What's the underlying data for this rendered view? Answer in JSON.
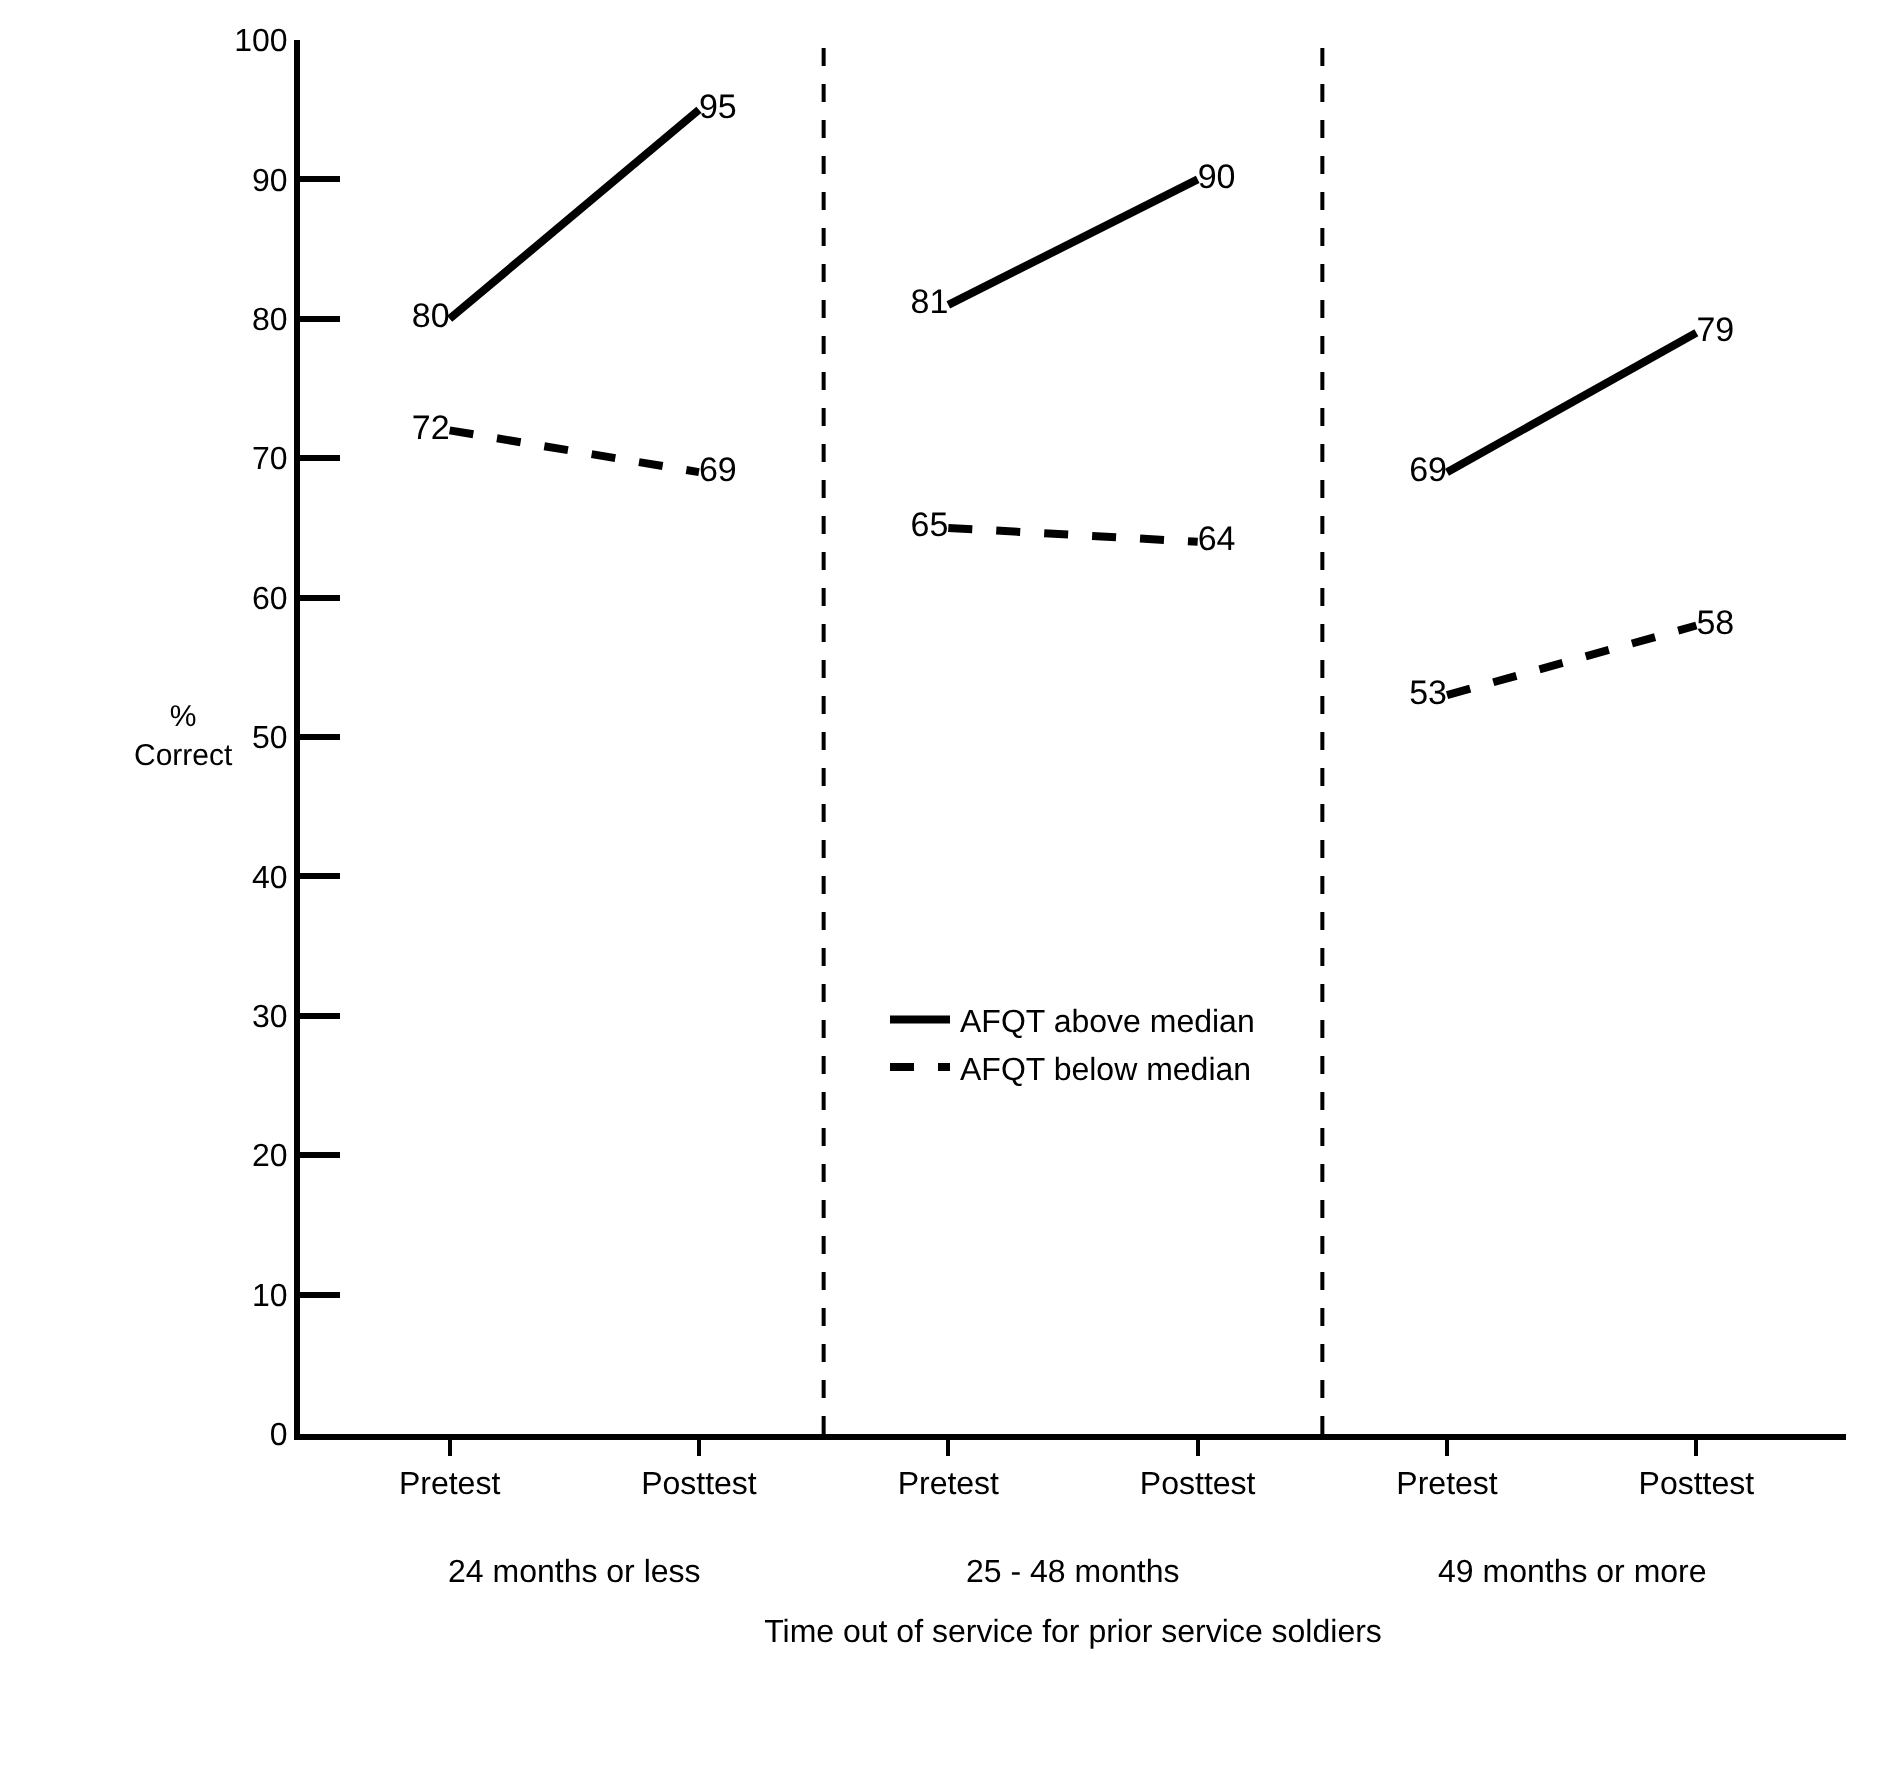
{
  "chart_data": {
    "type": "line",
    "ylabel": "% Correct",
    "xlabel": "Time out of service for prior service soldiers",
    "annotations": [
      "24 months or less",
      "25 - 48 months",
      "49 months or more"
    ],
    "categories": [
      "Pretest",
      "Posttest",
      "Pretest",
      "Posttest",
      "Pretest",
      "Posttest"
    ],
    "series": [
      {
        "name": "AFQT above median",
        "color": "#000000",
        "line_style": "solid",
        "values": [
          80,
          95,
          null,
          null,
          null,
          null
        ]
      },
      {
        "name": "AFQT below median",
        "color": "#000000",
        "line_style": "dashed",
        "values": [
          72,
          69,
          null,
          null,
          null,
          null
        ]
      },
      {
        "color": "#000000",
        "line_style": "solid",
        "values": [
          null,
          null,
          81,
          90,
          null,
          null
        ]
      },
      {
        "color": "#000000",
        "line_style": "dashed",
        "values": [
          null,
          null,
          65,
          64,
          null,
          null
        ]
      },
      {
        "color": "#000000",
        "line_style": "solid",
        "values": [
          null,
          null,
          null,
          null,
          69,
          79
        ]
      },
      {
        "color": "#000000",
        "line_style": "dashed",
        "values": [
          null,
          null,
          null,
          null,
          53,
          58
        ]
      }
    ],
    "ylim": [
      0,
      100
    ],
    "yticks": [
      0,
      10,
      20,
      30,
      40,
      50,
      60,
      70,
      80,
      90,
      100
    ],
    "data_labels": true,
    "grid": false,
    "legend": "bottom",
    "marker": "none"
  }
}
